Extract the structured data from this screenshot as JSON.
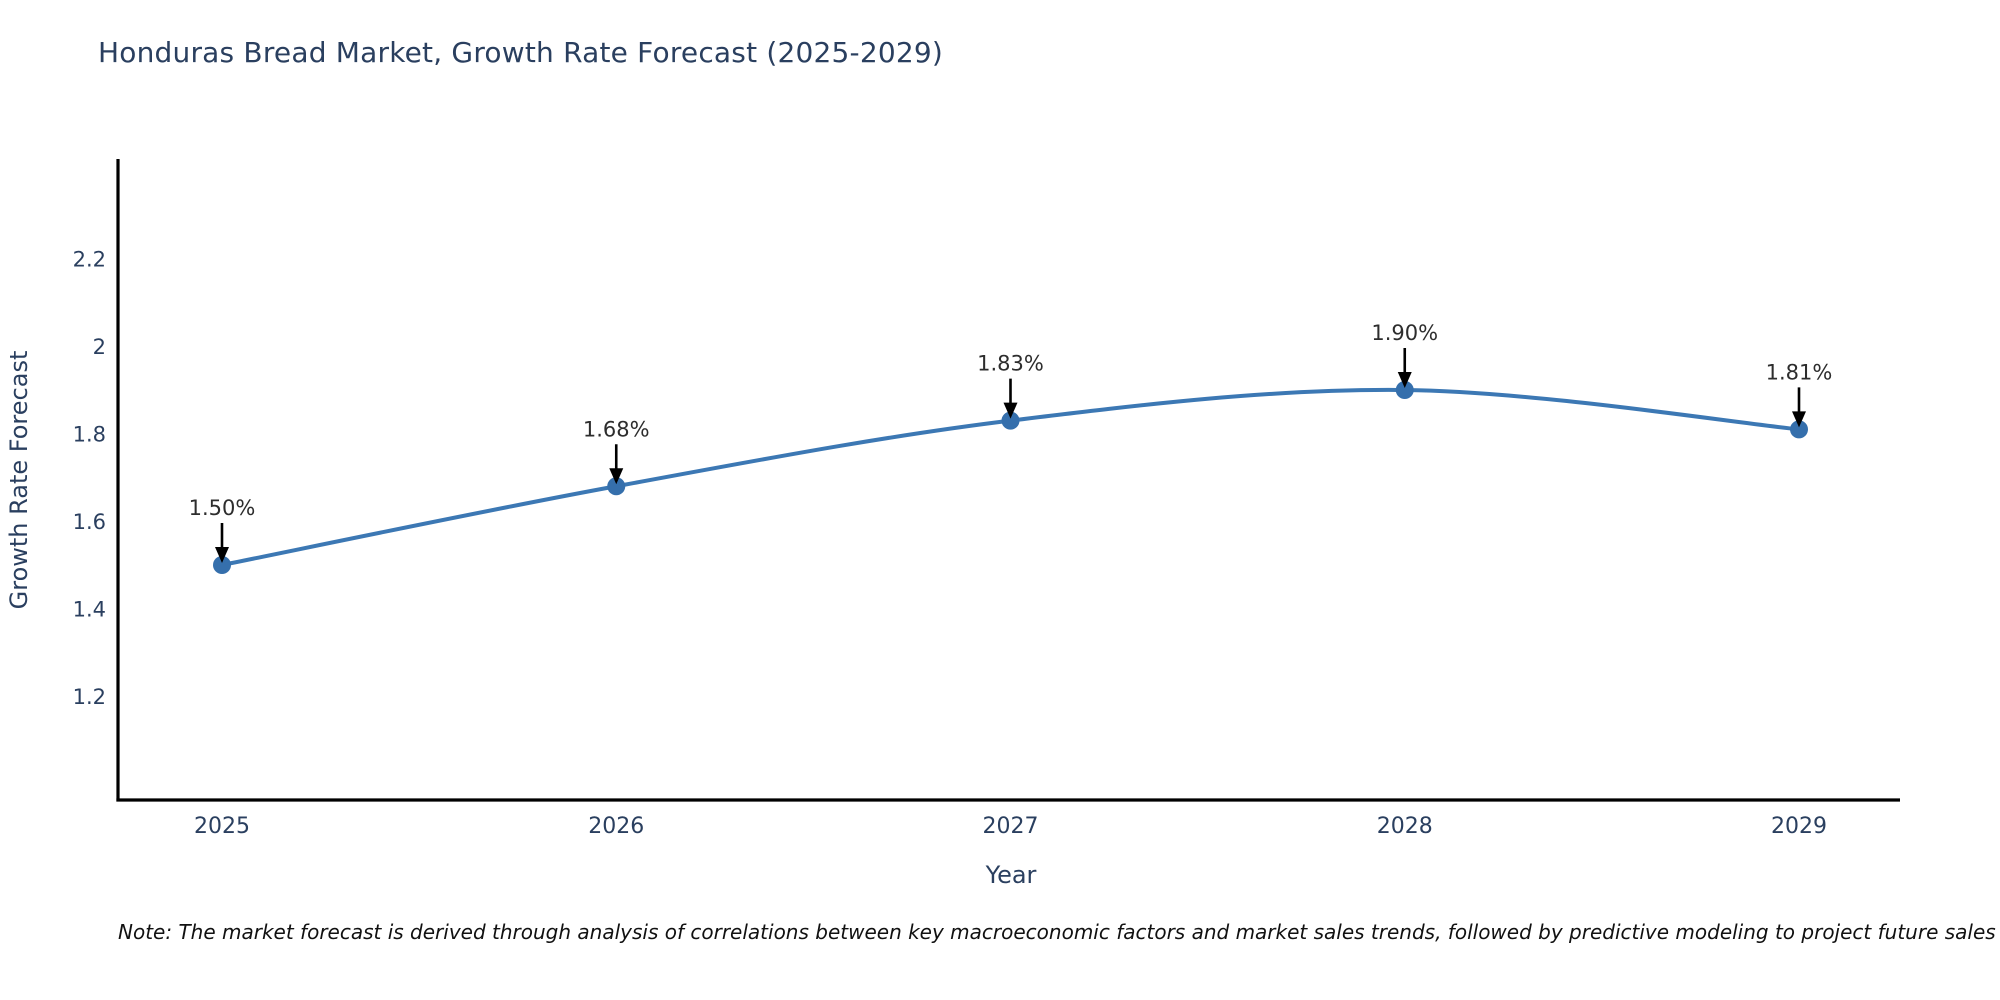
{
  "chart_data": {
    "type": "line",
    "title": "Honduras Bread Market, Growth Rate Forecast (2025-2029)",
    "xlabel": "Year",
    "ylabel": "Growth Rate Forecast",
    "x": [
      2025,
      2026,
      2027,
      2028,
      2029
    ],
    "x_tick_labels": [
      "2025",
      "2026",
      "2027",
      "2028",
      "2029"
    ],
    "series": [
      {
        "name": "Growth Rate Forecast",
        "values": [
          1.5,
          1.68,
          1.83,
          1.9,
          1.81
        ],
        "point_labels": [
          "1.50%",
          "1.68%",
          "1.83%",
          "1.90%",
          "1.81%"
        ]
      }
    ],
    "y_ticks": [
      2.2,
      2.0,
      1.8,
      1.6,
      1.4,
      1.2
    ],
    "y_tick_labels": [
      "2.2",
      "2",
      "1.8",
      "1.6",
      "1.4",
      "1.2"
    ],
    "ylim": [
      0.96,
      2.43
    ],
    "xlim": [
      2024.74,
      2029.26
    ],
    "grid": false,
    "legend": "none",
    "line_shape": "spline",
    "annotation_style": "value-label-with-black-down-arrow",
    "colors": {
      "line": "#3c78b4",
      "marker": "#356fac",
      "axis_line": "#000000",
      "axis_text": "#2a3f5f",
      "annotation_text": "#2d2d2d",
      "arrow": "#000000",
      "background": "#ffffff",
      "note_text": "#111111"
    }
  },
  "note": "Note: The market forecast is derived through analysis of correlations between key macroeconomic factors and market sales trends, followed by predictive modeling to project future sales"
}
